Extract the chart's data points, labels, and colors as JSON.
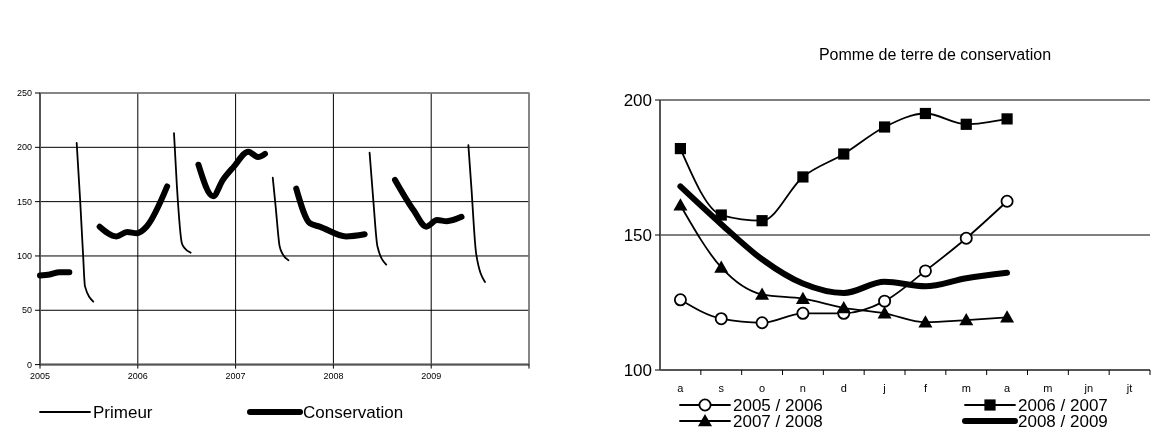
{
  "chart_data": [
    {
      "type": "line",
      "xlim": [
        2005,
        2010
      ],
      "xticks": [
        2005,
        2006,
        2007,
        2008,
        2009,
        {
          "value": 2010,
          "label": null
        }
      ],
      "ylim": [
        0,
        250
      ],
      "yticks": [
        0,
        50,
        100,
        150,
        200,
        250
      ],
      "grid": true,
      "legend": "bottom",
      "marker": "none",
      "line_style": "solid",
      "series": [
        {
          "name": "Primeur",
          "color": "#000000",
          "x": [
            2005.375,
            2005.41,
            2005.44,
            2005.46,
            2005.545,
            2005.9,
            2006.37,
            2006.4,
            2006.45,
            2006.48,
            2006.54,
            2006.9,
            2007.38,
            2007.41,
            2007.45,
            2007.48,
            2007.54,
            2007.9,
            2008.37,
            2008.41,
            2008.45,
            2008.54,
            2008.9,
            2009.38,
            2009.41,
            2009.46,
            2009.55
          ],
          "values": [
            204,
            152,
            102,
            72,
            58,
            null,
            213,
            164,
            112,
            107,
            103,
            null,
            172,
            145,
            109,
            102,
            96,
            null,
            195,
            149,
            109,
            92,
            null,
            202,
            164,
            102,
            76
          ]
        },
        {
          "name": "Conservation",
          "color": "#000000",
          "x": [
            2005.0,
            2005.1,
            2005.2,
            2005.3,
            2005.45,
            2005.61,
            2005.78,
            2005.89,
            2005.99,
            2006.09,
            2006.3,
            2006.45,
            2006.62,
            2006.77,
            2006.87,
            2006.98,
            2007.13,
            2007.23,
            2007.3,
            2007.45,
            2007.62,
            2007.76,
            2007.86,
            2008.13,
            2008.32,
            2008.45,
            2008.63,
            2008.82,
            2008.95,
            2009.06,
            2009.16,
            2009.31
          ],
          "values": [
            82,
            83,
            85,
            85,
            null,
            127,
            118,
            122,
            121,
            127,
            164,
            null,
            184,
            155,
            170,
            182,
            196,
            191,
            194,
            null,
            162,
            130,
            127,
            118,
            120,
            null,
            170,
            142,
            127,
            133,
            132,
            136
          ]
        }
      ]
    },
    {
      "type": "line",
      "title": "Pomme de terre de conservation",
      "categories": [
        "a",
        "s",
        "o",
        "n",
        "d",
        "j",
        "f",
        "m",
        "a",
        "m",
        "jn",
        "jt"
      ],
      "ylim": [
        100,
        200
      ],
      "yticks": [
        100,
        150,
        200
      ],
      "grid": "y",
      "legend": "bottom",
      "line_style": "solid",
      "series": [
        {
          "name": "2005 / 2006",
          "color": "#000000",
          "marker": "circle",
          "values": [
            126,
            119,
            117.5,
            121,
            121,
            125.5,
            136.7,
            148.8,
            162.5,
            null,
            null,
            null
          ]
        },
        {
          "name": "2006 / 2007",
          "color": "#000000",
          "marker": "square",
          "values": [
            182,
            157.4,
            155.3,
            171.5,
            180,
            190,
            195,
            191,
            193,
            null,
            null,
            null
          ]
        },
        {
          "name": "2007 / 2008",
          "color": "#000000",
          "marker": "triangle",
          "values": [
            161,
            138,
            128,
            126.4,
            123,
            121,
            117.7,
            118.5,
            119.5,
            null,
            null,
            null
          ]
        },
        {
          "name": "2008 / 2009",
          "color": "#000000",
          "marker": "none",
          "values": [
            168,
            154,
            141,
            132,
            128.5,
            132.7,
            131,
            134,
            136,
            null,
            null,
            null
          ]
        }
      ]
    }
  ]
}
